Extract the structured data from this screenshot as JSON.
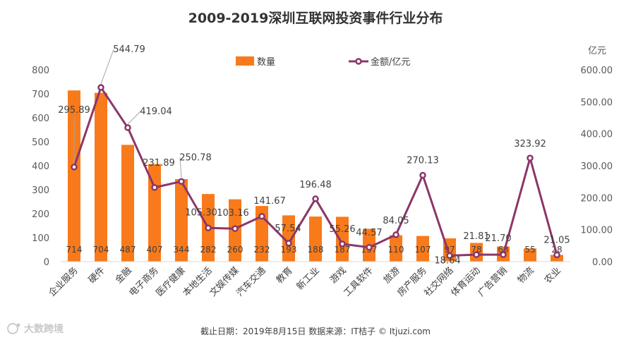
{
  "chart_data": {
    "type": "bar",
    "title": "2009-2019深圳互联网投资事件行业分布",
    "categories": [
      "企业服务",
      "硬件",
      "金融",
      "电子商务",
      "医疗健康",
      "本地生活",
      "文娱传媒",
      "汽车交通",
      "教育",
      "新工业",
      "游戏",
      "工具软件",
      "旅游",
      "房产服务",
      "社交网络",
      "体育运动",
      "广告营销",
      "物流",
      "农业"
    ],
    "series": [
      {
        "name": "数量",
        "kind": "bar",
        "axis": "left",
        "values": [
          714,
          704,
          487,
          407,
          344,
          282,
          260,
          232,
          193,
          188,
          187,
          137,
          110,
          107,
          97,
          78,
          63,
          55,
          28
        ]
      },
      {
        "name": "金额/亿元",
        "kind": "line",
        "axis": "right",
        "values": [
          295.89,
          544.79,
          419.04,
          231.89,
          250.78,
          105.3,
          103.16,
          141.67,
          57.54,
          196.48,
          55.26,
          44.57,
          84.05,
          270.13,
          18.64,
          21.81,
          21.7,
          323.92,
          21.05
        ]
      }
    ],
    "bar_labels": [
      "714",
      "704",
      "487",
      "407",
      "344",
      "282",
      "260",
      "232",
      "193",
      "188",
      "187",
      "137",
      "110",
      "107",
      "97",
      "78",
      "63",
      "55",
      "28"
    ],
    "line_labels": [
      "295.89",
      "544.79",
      "419.04",
      "231.89",
      "250.78",
      "105.30",
      "103.16",
      "141.67",
      "57.54",
      "196.48",
      "55.26",
      "44.57",
      "84.05",
      "270.13",
      "18.64",
      "21.81",
      "21.70",
      "323.92",
      "21.05"
    ],
    "y_left": {
      "min": 0,
      "max": 800,
      "step": 100,
      "ticks": [
        "0",
        "100",
        "200",
        "300",
        "400",
        "500",
        "600",
        "700",
        "800"
      ]
    },
    "y_right": {
      "min": 0,
      "max": 600,
      "step": 100,
      "label": "亿元",
      "ticks": [
        "0.00",
        "100.00",
        "200.00",
        "300.00",
        "400.00",
        "500.00",
        "600.00"
      ]
    },
    "legend": {
      "bar": "数量",
      "line": "金额/亿元",
      "position": "top"
    },
    "colors": {
      "bar": "#F97A1A",
      "line": "#8B3668",
      "marker_fill": "#ffffff"
    },
    "footer": "截止日期：2019年8月15日      数据来源：IT桔子 © Itjuzi.com",
    "watermark": "大数跨境"
  }
}
